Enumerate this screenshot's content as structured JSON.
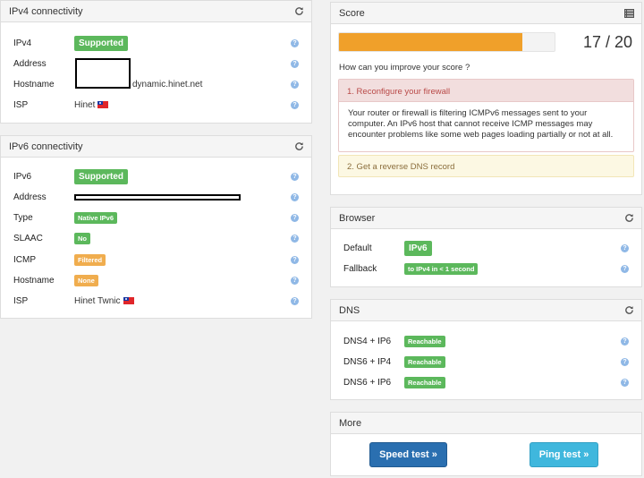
{
  "ipv4": {
    "title": "IPv4 connectivity",
    "rows": [
      {
        "label": "IPv4",
        "value": "Supported"
      },
      {
        "label": "Address",
        "value": ""
      },
      {
        "label": "Hostname",
        "value": "dynamic.hinet.net"
      },
      {
        "label": "ISP",
        "value": "Hinet"
      }
    ]
  },
  "ipv6": {
    "title": "IPv6 connectivity",
    "rows": [
      {
        "label": "IPv6",
        "value": "Supported"
      },
      {
        "label": "Address",
        "value": ""
      },
      {
        "label": "Type",
        "value": "Native IPv6"
      },
      {
        "label": "SLAAC",
        "value": "No"
      },
      {
        "label": "ICMP",
        "value": "Filtered"
      },
      {
        "label": "Hostname",
        "value": "None"
      },
      {
        "label": "ISP",
        "value": "Hinet Twnic"
      }
    ]
  },
  "score": {
    "title": "Score",
    "value": "17 / 20",
    "progress": 0.85,
    "improve_text": "How can you improve your score ?",
    "item1_title": "1. Reconfigure your firewall",
    "item1_body": "Your router or firewall is filtering ICMPv6 messages sent to your computer. An IPv6 host that cannot receive ICMP messages may encounter problems like some web pages loading partially or not at all.",
    "item2_title": "2. Get a reverse DNS record"
  },
  "browser": {
    "title": "Browser",
    "rows": [
      {
        "label": "Default",
        "value": "IPv6"
      },
      {
        "label": "Fallback",
        "value": "to IPv4 in < 1 second"
      }
    ]
  },
  "dns": {
    "title": "DNS",
    "rows": [
      {
        "label": "DNS4 + IP6",
        "value": "Reachable"
      },
      {
        "label": "DNS6 + IP4",
        "value": "Reachable"
      },
      {
        "label": "DNS6 + IP6",
        "value": "Reachable"
      }
    ]
  },
  "more": {
    "title": "More",
    "speed_label": "Speed test »",
    "ping_label": "Ping test »"
  },
  "help_glyph": "?",
  "colors": {
    "green": "#5cb85c",
    "orange": "#f0ad4e",
    "progress": "#f0a02a",
    "alert_red_bg": "#f2dede",
    "alert_yellow_bg": "#fcf8e3",
    "speed_btn": "#2a6fb0",
    "ping_btn": "#3fb7dd"
  }
}
